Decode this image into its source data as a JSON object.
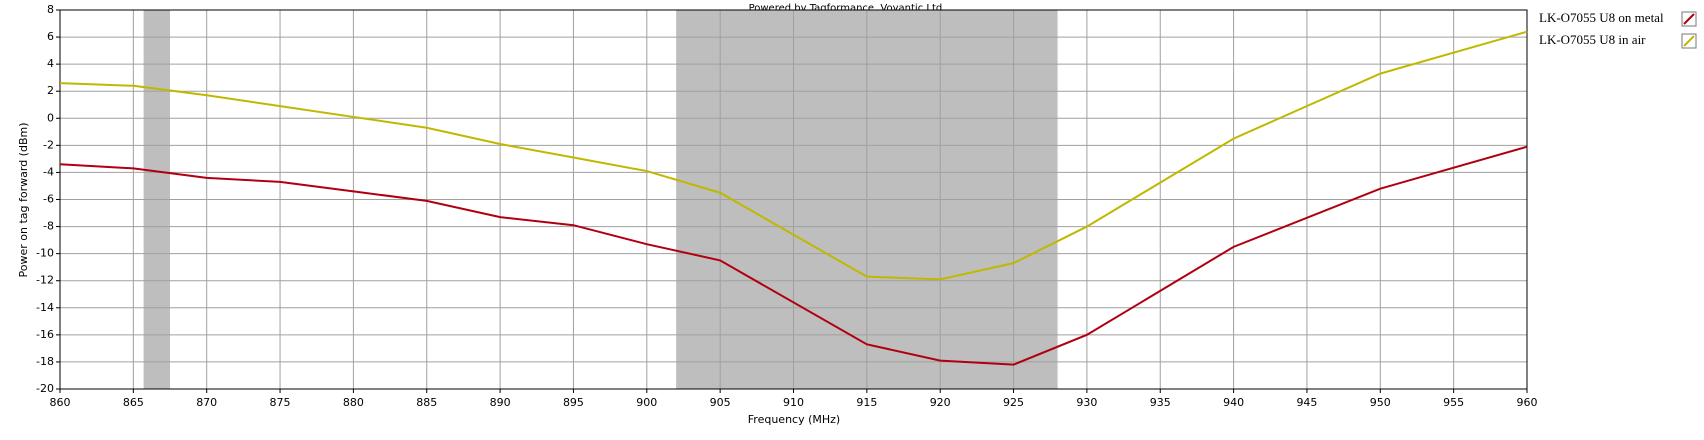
{
  "chart_data": {
    "type": "line",
    "title": "Powered by Tagformance, Voyantic Ltd.",
    "x_label": "Frequency (MHz)",
    "y_label": "Power on tag forward (dBm)",
    "x": [
      860,
      865,
      870,
      875,
      880,
      885,
      890,
      895,
      900,
      905,
      915,
      920,
      925,
      930,
      940,
      950,
      960
    ],
    "series": [
      {
        "name": "LK-O7055 U8 on metal",
        "color": "#b00010",
        "values": [
          -3.4,
          -3.7,
          -4.4,
          -4.7,
          -5.4,
          -6.1,
          -7.3,
          -7.9,
          -9.3,
          -10.5,
          -16.7,
          -17.9,
          -18.2,
          -16,
          -9.5,
          -5.2,
          -2.1
        ]
      },
      {
        "name": "LK-O7055 U8 in air",
        "color": "#c0b800",
        "values": [
          2.6,
          2.4,
          1.7,
          0.9,
          0.1,
          -0.7,
          -1.9,
          -2.9,
          -3.9,
          -5.5,
          -11.7,
          -11.9,
          -10.7,
          -8,
          -1.5,
          3.3,
          6.4
        ]
      }
    ],
    "bands": [
      [
        865.7,
        867.5
      ],
      [
        902,
        928
      ]
    ],
    "band_color": "#bebebe",
    "xlim": [
      860,
      960
    ],
    "xticks": [
      860,
      865,
      870,
      875,
      880,
      885,
      890,
      895,
      900,
      905,
      910,
      915,
      920,
      925,
      930,
      935,
      940,
      945,
      950,
      955,
      960
    ],
    "ylim": [
      -20,
      8
    ],
    "yticks": [
      -20,
      -18,
      -16,
      -14,
      -12,
      -10,
      -8,
      -6,
      -4,
      -2,
      0,
      2,
      4,
      6,
      8
    ],
    "grid": true,
    "legend": "right"
  }
}
